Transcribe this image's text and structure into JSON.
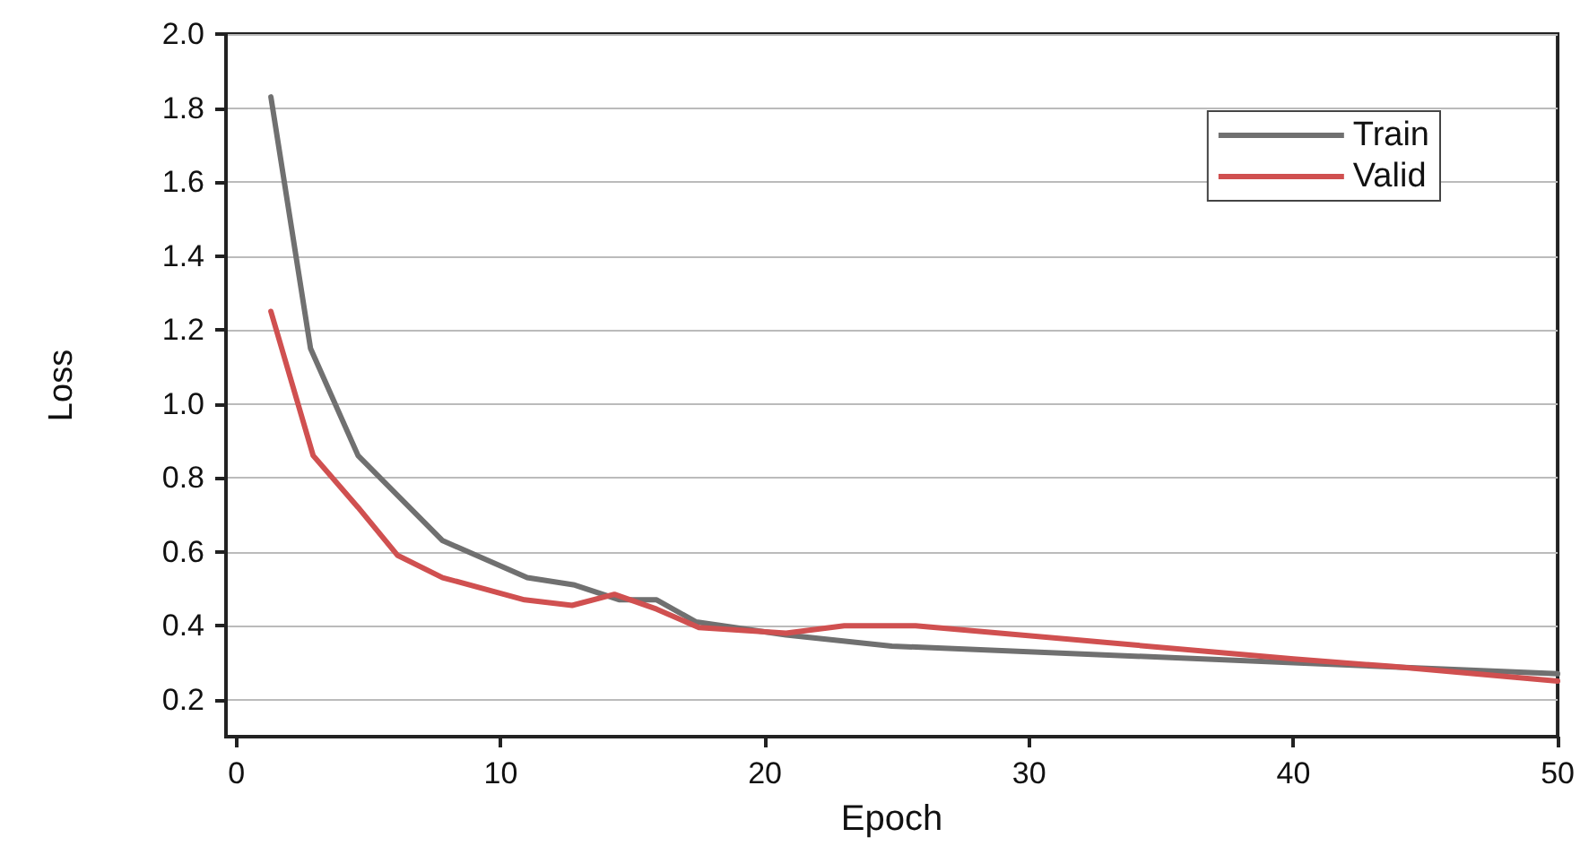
{
  "chart_data": {
    "type": "line",
    "xlabel": "Epoch",
    "ylabel": "Loss",
    "xlim": [
      -0.4,
      50
    ],
    "xticks": [
      0,
      10,
      20,
      30,
      40,
      50
    ],
    "ylim": [
      0.1,
      2.0
    ],
    "yticks": [
      0.2,
      0.4,
      0.6,
      0.8,
      {
        "value": 1,
        "label": "1.0"
      },
      1.2,
      1.4,
      1.6,
      1.8,
      {
        "value": 2,
        "label": "2.0"
      }
    ],
    "grid": "y",
    "legend": "top right",
    "marker": "none",
    "line_style": "solid",
    "series": [
      {
        "name": "Train",
        "color": "#707070",
        "x": [
          1.3,
          2.8,
          4.6,
          7.8,
          11,
          12.8,
          14.5,
          15.9,
          17.4,
          20.8,
          24.8,
          40,
          50
        ],
        "values": [
          1.83,
          1.15,
          0.86,
          0.63,
          0.53,
          0.51,
          0.47,
          0.47,
          0.41,
          0.375,
          0.345,
          0.3,
          0.27
        ]
      },
      {
        "name": "Valid",
        "color": "#d05050",
        "x": [
          1.3,
          2.9,
          4.6,
          6.1,
          7.8,
          10.9,
          12.7,
          14.3,
          15.9,
          17.5,
          20.8,
          23,
          25.7,
          40,
          43.7,
          50
        ],
        "values": [
          1.25,
          0.86,
          0.72,
          0.59,
          0.53,
          0.47,
          0.455,
          0.485,
          0.445,
          0.395,
          0.38,
          0.4,
          0.4,
          0.31,
          0.29,
          0.25
        ]
      }
    ]
  }
}
